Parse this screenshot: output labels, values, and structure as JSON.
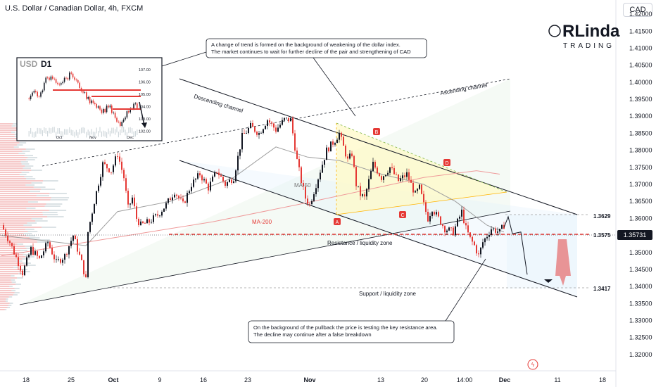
{
  "header": {
    "symbol_title": "U.S. Dollar / Canadian Dollar, 4h, FXCM",
    "currency_button": "CAD"
  },
  "logo": {
    "line1": "RLinda",
    "line2": "TRADING"
  },
  "inset": {
    "title": "USD",
    "timeframe": "D1",
    "yticks": [
      "107.00",
      "106.00",
      "105.00",
      "104.00",
      "103.00",
      "102.00"
    ],
    "xticks": [
      "Oct",
      "Nov",
      "Dec"
    ]
  },
  "annotations": {
    "top_note_line1": "A change of trend is formed on the background of weakening of the dollar index.",
    "top_note_line2": "The market continues to wait for further decline of the pair and strengthening of CAD",
    "bottom_note_line1": "On the background of the pullback the price is testing the key resistance area.",
    "bottom_note_line2": "The decline may continue after a false breakdown",
    "descending_channel": "Descending channel",
    "ascending_channel": "Ascending channel",
    "ma50": "MA-50",
    "ma200": "MA-200",
    "resistance_zone": "Resistance / liquidity zone",
    "support_zone": "Support / liquidity zone",
    "points": [
      "A",
      "B",
      "C",
      "D"
    ]
  },
  "levels": [
    {
      "value": "1.3629",
      "price": 1.3629
    },
    {
      "value": "1.3575",
      "price": 1.3575
    },
    {
      "value": "1.3417",
      "price": 1.3417
    }
  ],
  "current_price": {
    "label": "1.35731",
    "value": 1.35731,
    "color": "#131722"
  },
  "colors": {
    "up": "#131722",
    "down": "#e53935",
    "ma50": "#9e9e9e",
    "ma200": "#ef9a9a",
    "level": "#e53935",
    "accent_arrow": "#e57373"
  },
  "chart_data": {
    "type": "candlestick",
    "title": "U.S. Dollar / Canadian Dollar, 4h, FXCM",
    "ylim": [
      1.317,
      1.426
    ],
    "y_ticks": [
      "1.42000",
      "1.41500",
      "1.41000",
      "1.40500",
      "1.40000",
      "1.39500",
      "1.39000",
      "1.38500",
      "1.38000",
      "1.37500",
      "1.37000",
      "1.36500",
      "1.36000",
      "1.35500",
      "1.35000",
      "1.34500",
      "1.34000",
      "1.33500",
      "1.33000",
      "1.32500",
      "1.32000"
    ],
    "x_ticks": [
      "18",
      "25",
      "Oct",
      "9",
      "16",
      "23",
      "Nov",
      "13",
      "20",
      "14:00",
      "Dec",
      "11",
      "18"
    ],
    "close_path": [
      [
        0,
        1.358
      ],
      [
        4,
        1.353
      ],
      [
        8,
        1.347
      ],
      [
        10,
        1.344
      ],
      [
        14,
        1.351
      ],
      [
        18,
        1.348
      ],
      [
        22,
        1.353
      ],
      [
        26,
        1.347
      ],
      [
        30,
        1.349
      ],
      [
        34,
        1.355
      ],
      [
        38,
        1.347
      ],
      [
        40,
        1.342
      ],
      [
        41,
        1.356
      ],
      [
        44,
        1.365
      ],
      [
        48,
        1.376
      ],
      [
        52,
        1.374
      ],
      [
        55,
        1.379
      ],
      [
        58,
        1.372
      ],
      [
        60,
        1.363
      ],
      [
        62,
        1.366
      ],
      [
        64,
        1.36
      ],
      [
        66,
        1.358
      ],
      [
        70,
        1.359
      ],
      [
        74,
        1.361
      ],
      [
        78,
        1.364
      ],
      [
        82,
        1.368
      ],
      [
        86,
        1.364
      ],
      [
        90,
        1.37
      ],
      [
        94,
        1.373
      ],
      [
        98,
        1.369
      ],
      [
        102,
        1.374
      ],
      [
        106,
        1.37
      ],
      [
        110,
        1.372
      ],
      [
        114,
        1.384
      ],
      [
        118,
        1.387
      ],
      [
        122,
        1.385
      ],
      [
        126,
        1.389
      ],
      [
        130,
        1.386
      ],
      [
        134,
        1.389
      ],
      [
        137,
        1.389
      ],
      [
        140,
        1.377
      ],
      [
        142,
        1.371
      ],
      [
        144,
        1.366
      ],
      [
        146,
        1.364
      ],
      [
        150,
        1.372
      ],
      [
        154,
        1.38
      ],
      [
        158,
        1.383
      ],
      [
        160,
        1.385
      ],
      [
        162,
        1.381
      ],
      [
        164,
        1.377
      ],
      [
        166,
        1.379
      ],
      [
        168,
        1.37
      ],
      [
        170,
        1.367
      ],
      [
        172,
        1.366
      ],
      [
        176,
        1.376
      ],
      [
        180,
        1.372
      ],
      [
        184,
        1.375
      ],
      [
        188,
        1.371
      ],
      [
        192,
        1.373
      ],
      [
        196,
        1.367
      ],
      [
        198,
        1.369
      ],
      [
        200,
        1.364
      ],
      [
        202,
        1.36
      ],
      [
        204,
        1.363
      ],
      [
        206,
        1.361
      ],
      [
        210,
        1.357
      ],
      [
        214,
        1.356
      ],
      [
        218,
        1.362
      ],
      [
        220,
        1.357
      ],
      [
        222,
        1.354
      ],
      [
        224,
        1.352
      ],
      [
        226,
        1.349
      ],
      [
        228,
        1.353
      ],
      [
        232,
        1.357
      ],
      [
        236,
        1.356
      ],
      [
        238,
        1.358
      ]
    ],
    "projection": [
      [
        238,
        1.3573
      ],
      [
        240,
        1.3605
      ],
      [
        242,
        1.3555
      ],
      [
        246,
        1.356
      ],
      [
        249,
        1.3435
      ]
    ],
    "moving_averages": [
      {
        "name": "MA-50",
        "values": [
          [
            0,
            1.355
          ],
          [
            40,
            1.352
          ],
          [
            55,
            1.362
          ],
          [
            80,
            1.365
          ],
          [
            110,
            1.372
          ],
          [
            130,
            1.381
          ],
          [
            145,
            1.378
          ],
          [
            160,
            1.377
          ],
          [
            180,
            1.373
          ],
          [
            200,
            1.37
          ],
          [
            215,
            1.365
          ],
          [
            230,
            1.358
          ],
          [
            238,
            1.356
          ]
        ]
      },
      {
        "name": "MA-200",
        "values": [
          [
            0,
            1.349
          ],
          [
            60,
            1.355
          ],
          [
            100,
            1.359
          ],
          [
            140,
            1.364
          ],
          [
            170,
            1.368
          ],
          [
            200,
            1.372
          ],
          [
            225,
            1.374
          ],
          [
            236,
            1.373
          ]
        ]
      }
    ],
    "volume_profile": true
  }
}
